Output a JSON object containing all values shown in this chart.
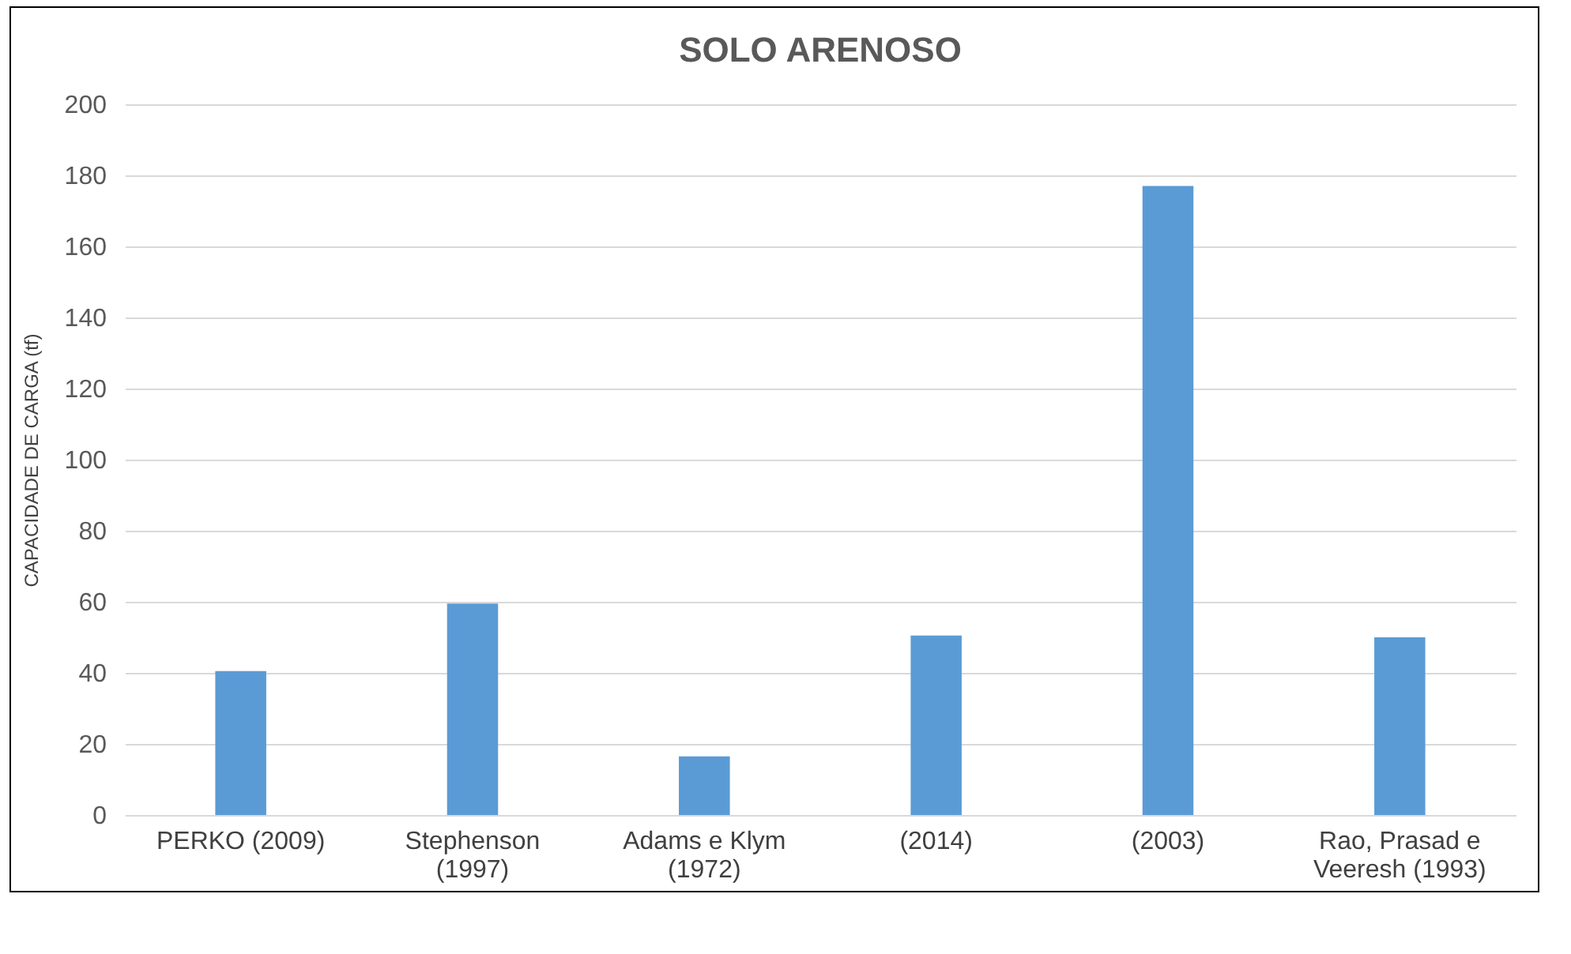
{
  "chart_data": {
    "type": "bar",
    "title": "SOLO ARENOSO",
    "ylabel": "CAPACIDADE DE CARGA (tf)",
    "categories": [
      "PERKO (2009)",
      "Stephenson (1997)",
      "Adams e Klym (1972)",
      "(2014)",
      "(2003)",
      "Rao, Prasad e Veeresh (1993)"
    ],
    "values": [
      40.5,
      59.5,
      16.5,
      50.5,
      177,
      50
    ],
    "color": "#5b9bd5",
    "ylim": [
      0,
      200
    ],
    "yticks": [
      0,
      20,
      40,
      60,
      80,
      100,
      120,
      140,
      160,
      180,
      200
    ],
    "grid": "y"
  }
}
